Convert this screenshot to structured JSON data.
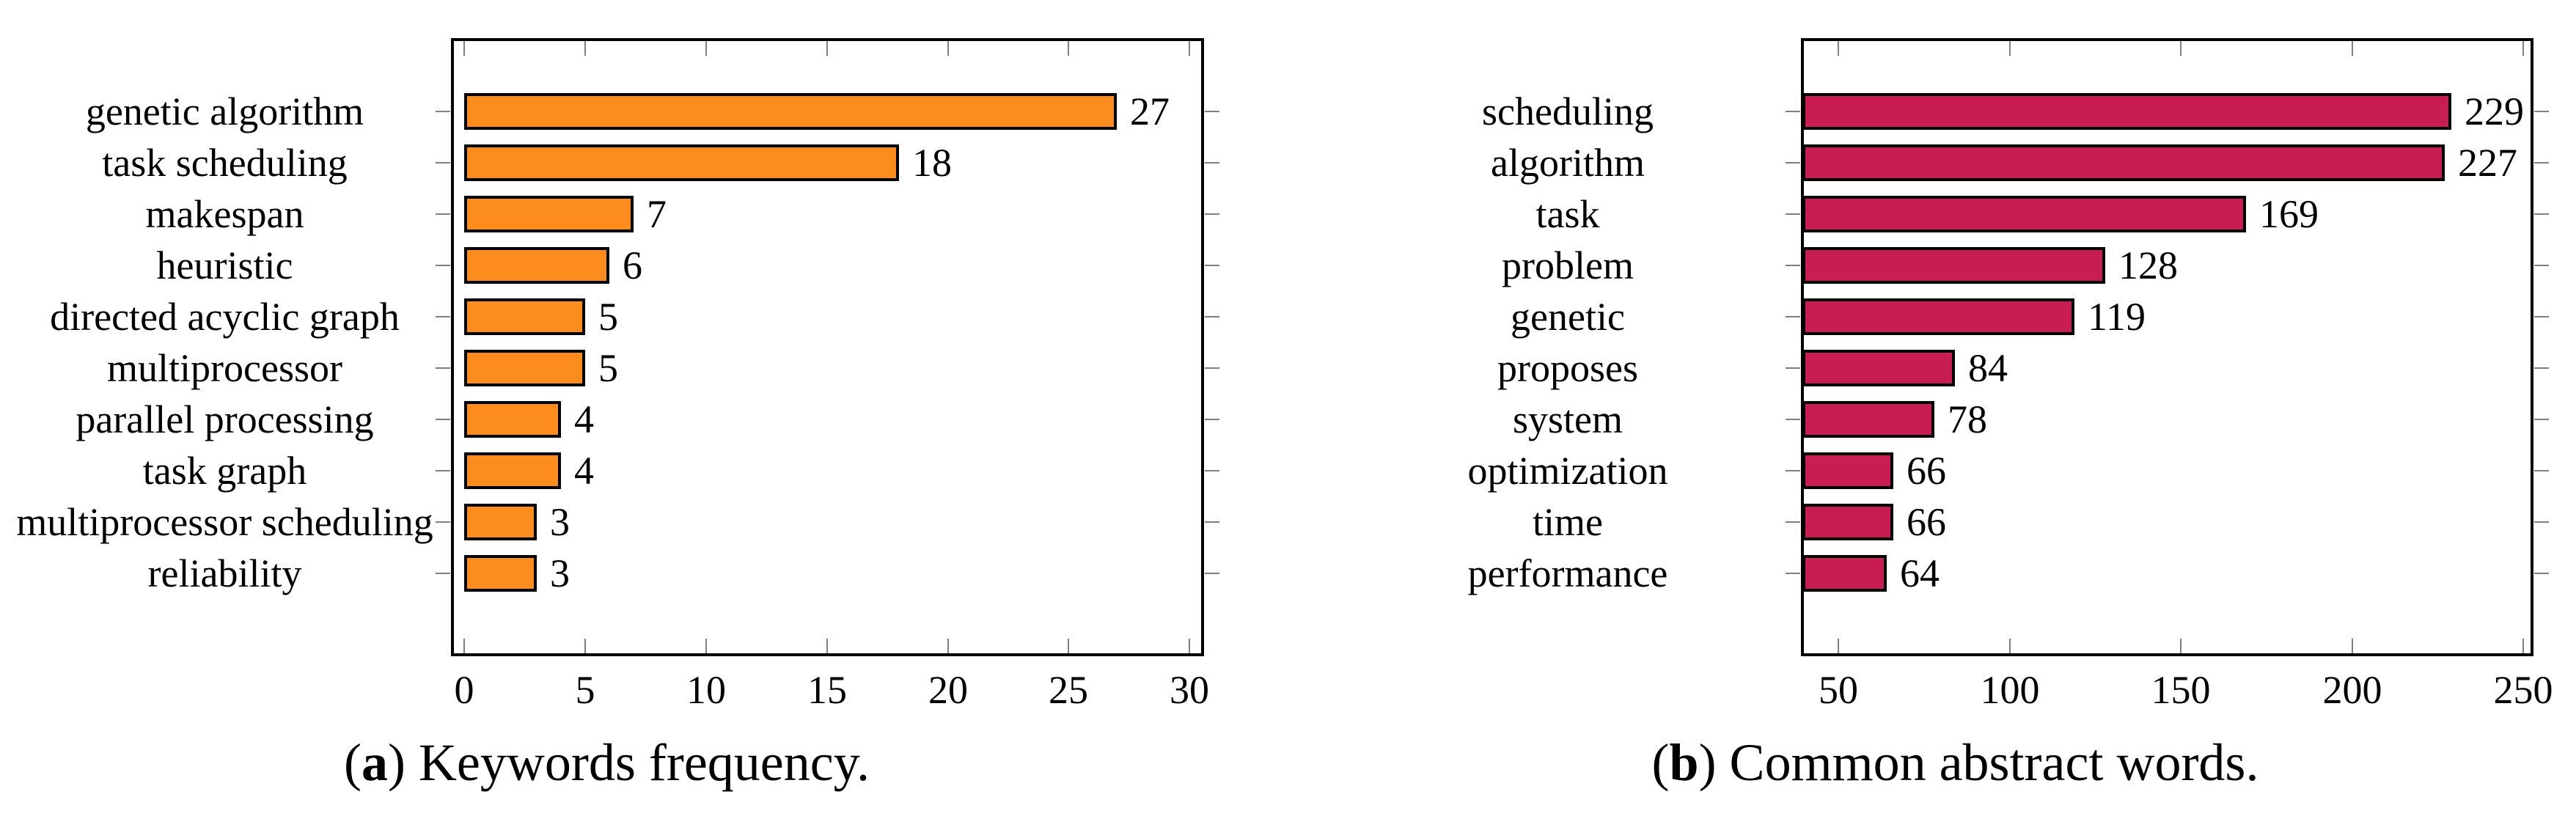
{
  "figure": {
    "background": "#ffffff",
    "frame_border_color": "#000000",
    "tick_color": "#7f7f7f"
  },
  "chart_data": [
    {
      "id": "a",
      "type": "bar",
      "orientation": "horizontal",
      "title": "",
      "xlabel": "",
      "ylabel": "",
      "legend": "none",
      "grid": false,
      "caption_label": "a",
      "caption_text": "Keywords frequency.",
      "categories": [
        "genetic algorithm",
        "task scheduling",
        "makespan",
        "heuristic",
        "directed acyclic graph",
        "multiprocessor",
        "parallel processing",
        "task graph",
        "multiprocessor scheduling",
        "reliability"
      ],
      "values": [
        27,
        18,
        7,
        6,
        5,
        5,
        4,
        4,
        3,
        3
      ],
      "data_labels": [
        "27",
        "18",
        "7",
        "6",
        "5",
        "5",
        "4",
        "4",
        "3",
        "3"
      ],
      "bar_color": "#FB8C1D",
      "bar_edge_color": "#000000",
      "x_ticks": [
        0,
        5,
        10,
        15,
        20,
        25,
        30
      ],
      "x_tick_labels": [
        "0",
        "5",
        "10",
        "15",
        "20",
        "25",
        "30"
      ],
      "xlim": [
        -0.55,
        30.6
      ]
    },
    {
      "id": "b",
      "type": "bar",
      "orientation": "horizontal",
      "title": "",
      "xlabel": "",
      "ylabel": "",
      "legend": "none",
      "grid": false,
      "caption_label": "b",
      "caption_text": "Common abstract words.",
      "categories": [
        "scheduling",
        "algorithm",
        "task",
        "problem",
        "genetic",
        "proposes",
        "system",
        "optimization",
        "time",
        "performance"
      ],
      "values": [
        229,
        227,
        169,
        128,
        119,
        84,
        78,
        66,
        66,
        64
      ],
      "data_labels": [
        "229",
        "227",
        "169",
        "128",
        "119",
        "84",
        "78",
        "66",
        "66",
        "64"
      ],
      "bar_color": "#C81D53",
      "bar_edge_color": "#000000",
      "x_ticks": [
        50,
        100,
        150,
        200,
        250
      ],
      "x_tick_labels": [
        "50",
        "100",
        "150",
        "200",
        "250"
      ],
      "xlim": [
        39,
        253
      ]
    }
  ]
}
